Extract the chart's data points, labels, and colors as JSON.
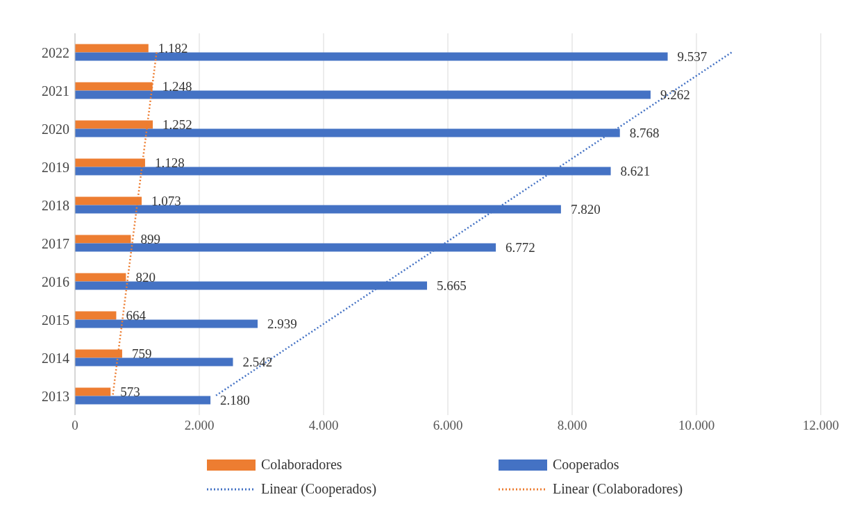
{
  "chart_data": {
    "type": "bar",
    "orientation": "horizontal",
    "categories": [
      "2022",
      "2021",
      "2020",
      "2019",
      "2018",
      "2017",
      "2016",
      "2015",
      "2014",
      "2013"
    ],
    "series": [
      {
        "name": "Colaboradores",
        "color": "#ed7d31",
        "values": [
          1182,
          1248,
          1252,
          1128,
          1073,
          899,
          820,
          664,
          759,
          573
        ],
        "value_labels": [
          "1.182",
          "1.248",
          "1.252",
          "1.128",
          "1.073",
          "899",
          "820",
          "664",
          "759",
          "573"
        ]
      },
      {
        "name": "Cooperados",
        "color": "#4472c4",
        "values": [
          9537,
          9262,
          8768,
          8621,
          7820,
          6772,
          5665,
          2939,
          2542,
          2180
        ],
        "value_labels": [
          "9.537",
          "9.262",
          "8.768",
          "8.621",
          "7.820",
          "6.772",
          "5.665",
          "2.939",
          "2.542",
          "2.180"
        ]
      },
      {
        "name": "Linear (Cooperados)",
        "type": "line",
        "line_style": "dotted",
        "color": "#4472c4",
        "values": [
          10565,
          9642,
          8719,
          7796,
          6873,
          5950,
          5027,
          4103,
          3180,
          2257
        ]
      },
      {
        "name": "Linear (Colaboradores)",
        "type": "line",
        "line_style": "dotted",
        "color": "#ed7d31",
        "values": [
          1313,
          1234,
          1156,
          1077,
          999,
          921,
          842,
          764,
          685,
          607
        ]
      }
    ],
    "xlim": [
      0,
      12000
    ],
    "xticks": [
      0,
      {
        "value": 2000,
        "label": "2.000"
      },
      {
        "value": 4000,
        "label": "4.000"
      },
      {
        "value": 6000,
        "label": "6.000"
      },
      {
        "value": 8000,
        "label": "8.000"
      },
      {
        "value": 10000,
        "label": "10.000"
      },
      {
        "value": 12000,
        "label": "12.000"
      }
    ],
    "grid": "x",
    "legend": "bottom"
  }
}
